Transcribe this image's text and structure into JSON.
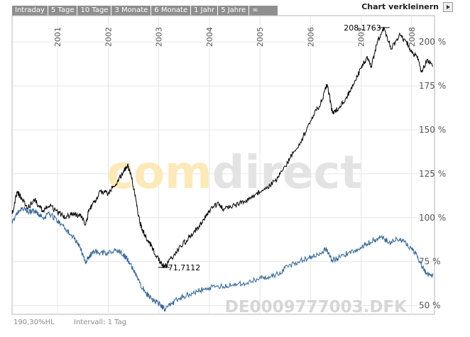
{
  "tabs": [
    "Intraday",
    "5 Tage",
    "10 Tage",
    "3 Monate",
    "6 Monate",
    "1 Jahr",
    "5 Jahre",
    "∞"
  ],
  "shrink_label": "Chart verkleinern",
  "watermark": "comdirect",
  "footer": {
    "hl": "190,30%HL",
    "interval": "Intervall: 1 Tag",
    "symbol": "DE0009777003.DFK"
  },
  "chart_data": {
    "type": "line",
    "x_ticks": [
      "2001",
      "2002",
      "2003",
      "2004",
      "2005",
      "2006",
      "2007",
      "2008"
    ],
    "y_ticks": [
      "200 %",
      "175 %",
      "150 %",
      "125 %",
      "100 %",
      "75 %",
      "50 %"
    ],
    "ylim": [
      45,
      215
    ],
    "xlim": [
      2000.1,
      2008.45
    ],
    "annotations": [
      {
        "label": "208,1763",
        "x": 2007.45,
        "y": 208.2
      },
      {
        "label": "71,7112",
        "x": 2003.1,
        "y": 71.7
      }
    ],
    "series": [
      {
        "color": "#000000",
        "points": [
          [
            2000.1,
            102
          ],
          [
            2000.2,
            115
          ],
          [
            2000.3,
            110
          ],
          [
            2000.42,
            106
          ],
          [
            2000.55,
            110
          ],
          [
            2000.7,
            104
          ],
          [
            2000.85,
            107
          ],
          [
            2001.0,
            103
          ],
          [
            2001.15,
            100
          ],
          [
            2001.3,
            102
          ],
          [
            2001.45,
            101
          ],
          [
            2001.55,
            96
          ],
          [
            2001.62,
            104
          ],
          [
            2001.72,
            109
          ],
          [
            2001.85,
            115
          ],
          [
            2002.0,
            114
          ],
          [
            2002.15,
            119
          ],
          [
            2002.3,
            126
          ],
          [
            2002.38,
            130
          ],
          [
            2002.45,
            125
          ],
          [
            2002.55,
            110
          ],
          [
            2002.62,
            98
          ],
          [
            2002.72,
            90
          ],
          [
            2002.85,
            84
          ],
          [
            2002.95,
            78
          ],
          [
            2003.05,
            74
          ],
          [
            2003.12,
            71.7
          ],
          [
            2003.25,
            77
          ],
          [
            2003.4,
            83
          ],
          [
            2003.55,
            87
          ],
          [
            2003.7,
            92
          ],
          [
            2003.85,
            97
          ],
          [
            2004.0,
            104
          ],
          [
            2004.15,
            108
          ],
          [
            2004.3,
            105
          ],
          [
            2004.5,
            107
          ],
          [
            2004.7,
            109
          ],
          [
            2004.9,
            113
          ],
          [
            2005.1,
            116
          ],
          [
            2005.3,
            121
          ],
          [
            2005.45,
            127
          ],
          [
            2005.6,
            134
          ],
          [
            2005.8,
            143
          ],
          [
            2006.0,
            155
          ],
          [
            2006.2,
            165
          ],
          [
            2006.33,
            176
          ],
          [
            2006.43,
            160
          ],
          [
            2006.55,
            162
          ],
          [
            2006.7,
            168
          ],
          [
            2006.85,
            176
          ],
          [
            2007.0,
            185
          ],
          [
            2007.12,
            192
          ],
          [
            2007.2,
            186
          ],
          [
            2007.32,
            200
          ],
          [
            2007.45,
            208.2
          ],
          [
            2007.6,
            196
          ],
          [
            2007.75,
            204
          ],
          [
            2007.9,
            200
          ],
          [
            2008.0,
            194
          ],
          [
            2008.1,
            192
          ],
          [
            2008.2,
            183
          ],
          [
            2008.3,
            190
          ],
          [
            2008.42,
            186
          ]
        ]
      },
      {
        "color": "#336699",
        "points": [
          [
            2000.1,
            98
          ],
          [
            2000.2,
            102
          ],
          [
            2000.3,
            106
          ],
          [
            2000.42,
            103
          ],
          [
            2000.55,
            104
          ],
          [
            2000.7,
            100
          ],
          [
            2000.85,
            102
          ],
          [
            2001.0,
            98
          ],
          [
            2001.15,
            94
          ],
          [
            2001.3,
            89
          ],
          [
            2001.45,
            83
          ],
          [
            2001.55,
            74
          ],
          [
            2001.62,
            78
          ],
          [
            2001.72,
            81
          ],
          [
            2001.85,
            80
          ],
          [
            2002.0,
            80
          ],
          [
            2002.15,
            82
          ],
          [
            2002.3,
            79
          ],
          [
            2002.38,
            76
          ],
          [
            2002.5,
            70
          ],
          [
            2002.62,
            63
          ],
          [
            2002.75,
            57
          ],
          [
            2002.85,
            54
          ],
          [
            2002.95,
            52
          ],
          [
            2003.05,
            50
          ],
          [
            2003.12,
            48
          ],
          [
            2003.25,
            51
          ],
          [
            2003.4,
            54
          ],
          [
            2003.55,
            56
          ],
          [
            2003.75,
            58
          ],
          [
            2003.95,
            60
          ],
          [
            2004.15,
            61
          ],
          [
            2004.35,
            61
          ],
          [
            2004.55,
            62
          ],
          [
            2004.75,
            63
          ],
          [
            2004.95,
            65
          ],
          [
            2005.15,
            66
          ],
          [
            2005.35,
            68
          ],
          [
            2005.55,
            72
          ],
          [
            2005.75,
            75
          ],
          [
            2005.95,
            77
          ],
          [
            2006.15,
            79
          ],
          [
            2006.3,
            82
          ],
          [
            2006.42,
            76
          ],
          [
            2006.55,
            77
          ],
          [
            2006.75,
            80
          ],
          [
            2006.95,
            82
          ],
          [
            2007.1,
            85
          ],
          [
            2007.25,
            87
          ],
          [
            2007.4,
            89
          ],
          [
            2007.55,
            86
          ],
          [
            2007.7,
            88
          ],
          [
            2007.85,
            86
          ],
          [
            2008.0,
            82
          ],
          [
            2008.1,
            79
          ],
          [
            2008.2,
            72
          ],
          [
            2008.3,
            68
          ],
          [
            2008.42,
            67
          ]
        ]
      }
    ]
  }
}
